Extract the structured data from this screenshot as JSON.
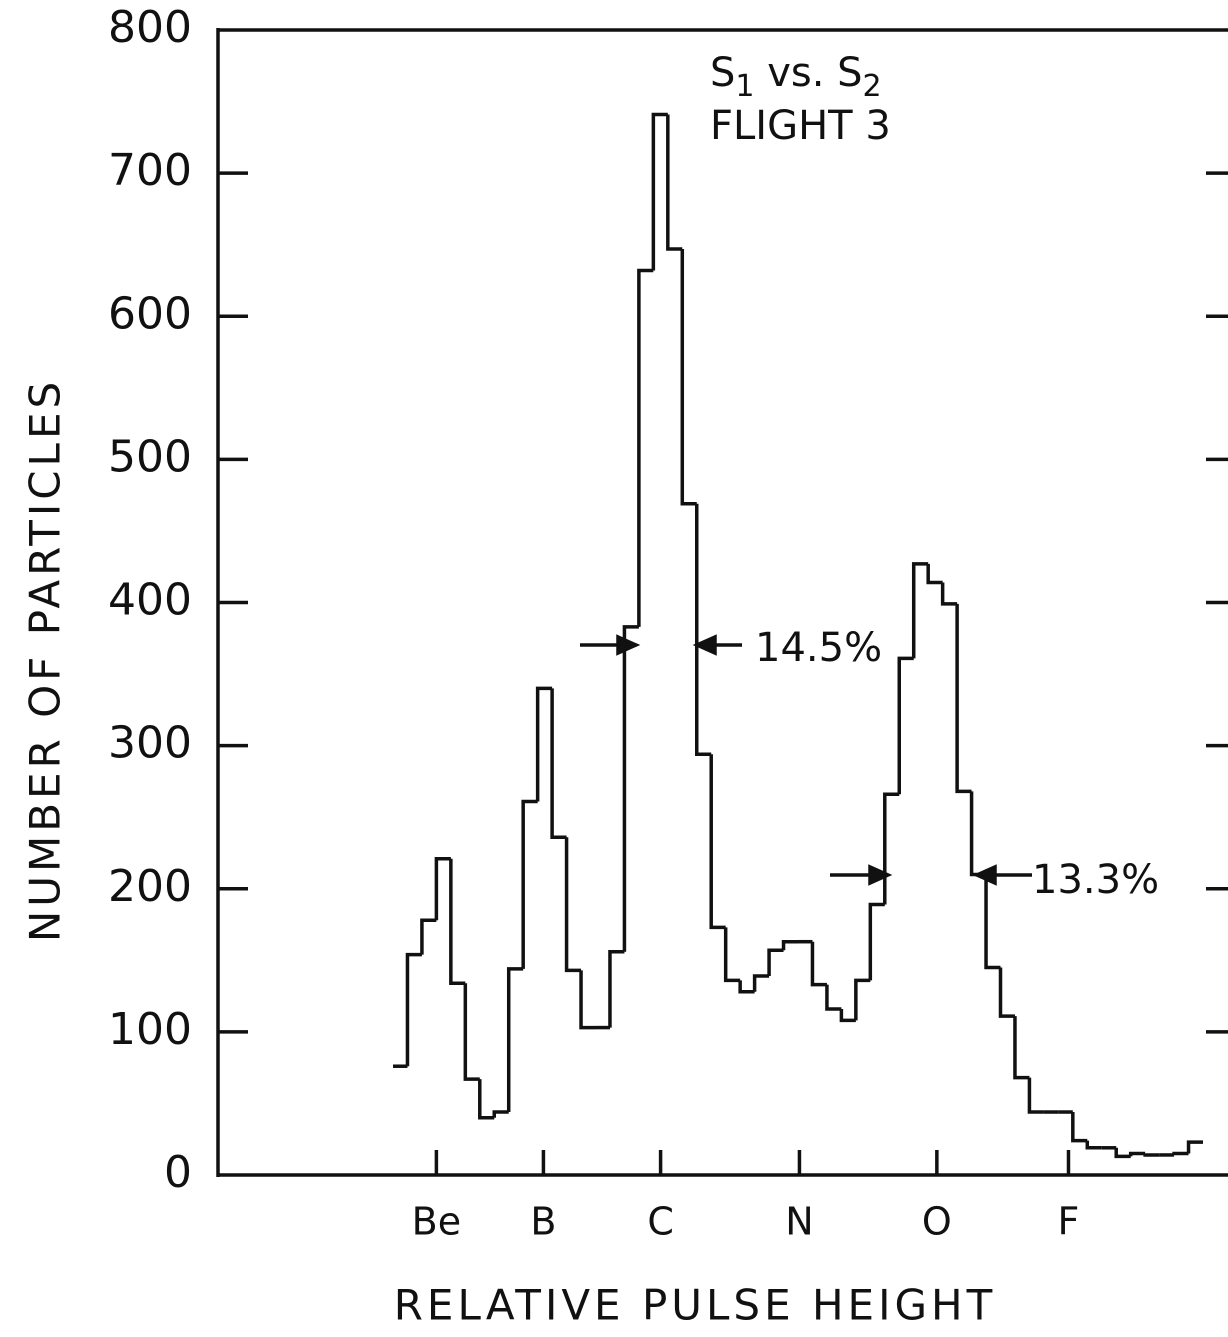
{
  "chart_data": {
    "type": "histogram",
    "title": "S1 vs. S2",
    "subtitle": "FLIGHT 3",
    "xlabel": "RELATIVE PULSE HEIGHT",
    "ylabel": "NUMBER OF PARTICLES",
    "bins": [
      0,
      1,
      2,
      3,
      4,
      5,
      6,
      7,
      8,
      9,
      10,
      11,
      12,
      13,
      14,
      15,
      16,
      17,
      18,
      19,
      20,
      21,
      22,
      23,
      24,
      25,
      26,
      27,
      28,
      29,
      30,
      31,
      32,
      33,
      34,
      35,
      36,
      37,
      38,
      39,
      40,
      41,
      42,
      43,
      44,
      45,
      46,
      47,
      48,
      49,
      50,
      51,
      52,
      53,
      54,
      55,
      56
    ],
    "values": [
      76,
      154,
      178,
      221,
      134,
      67,
      40,
      44,
      144,
      261,
      340,
      236,
      143,
      103,
      103,
      156,
      383,
      632,
      741,
      647,
      469,
      294,
      173,
      136,
      128,
      139,
      157,
      163,
      163,
      133,
      116,
      108,
      136,
      189,
      266,
      361,
      427,
      414,
      399,
      268,
      210,
      145,
      111,
      68,
      44,
      44,
      44,
      24,
      19,
      19,
      13,
      15,
      14,
      14,
      15,
      23
    ],
    "color": "#000000",
    "xticks": [
      {
        "value": 3,
        "label": "Be"
      },
      {
        "value": 10.4,
        "label": "B"
      },
      {
        "value": 18.5,
        "label": "C"
      },
      {
        "value": 28.1,
        "label": "N"
      },
      {
        "value": 37.6,
        "label": "O"
      },
      {
        "value": 46.7,
        "label": "F"
      }
    ],
    "ylim": [
      0,
      800
    ],
    "yticks": [
      0,
      100,
      200,
      300,
      400,
      500,
      600,
      700,
      800
    ],
    "annotations": [
      "14.5%",
      "13.3%"
    ]
  }
}
